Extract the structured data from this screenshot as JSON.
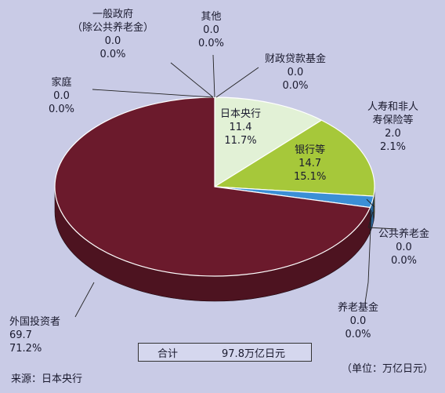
{
  "chart_data": {
    "type": "pie",
    "slices": [
      {
        "name": "日本央行",
        "value": "11.4",
        "pct": "11.7%",
        "v": 11.4,
        "color": "#e2f1d6"
      },
      {
        "name": "银行等",
        "value": "14.7",
        "pct": "15.1%",
        "v": 14.7,
        "color": "#a6c83a"
      },
      {
        "name": "人寿和非人寿保险等",
        "value": "2.0",
        "pct": "2.1%",
        "v": 2.0,
        "color": "#3b8fd6"
      },
      {
        "name": "公共养老金",
        "value": "0.0",
        "pct": "0.0%",
        "v": 0.0,
        "color": "#3b8fd6"
      },
      {
        "name": "养老基金",
        "value": "0.0",
        "pct": "0.0%",
        "v": 0.0,
        "color": "#3b8fd6"
      },
      {
        "name": "外国投资者",
        "value": "69.7",
        "pct": "71.2%",
        "v": 69.7,
        "color": "#6b1a2c"
      },
      {
        "name": "家庭",
        "value": "0.0",
        "pct": "0.0%",
        "v": 0.0,
        "color": "#6b1a2c"
      },
      {
        "name": "一般政府（除公共养老金）",
        "value": "0.0",
        "pct": "0.0%",
        "v": 0.0,
        "color": "#6b1a2c"
      },
      {
        "name": "其他",
        "value": "0.0",
        "pct": "0.0%",
        "v": 0.0,
        "color": "#6b1a2c"
      },
      {
        "name": "财政贷款基金",
        "value": "0.0",
        "pct": "0.0%",
        "v": 0.0,
        "color": "#6b1a2c"
      }
    ],
    "labels": {
      "boj": {
        "name": "日本央行",
        "value": "11.4",
        "pct": "11.7%"
      },
      "banks": {
        "name": "银行等",
        "value": "14.7",
        "pct": "15.1%"
      },
      "insurance": {
        "name1": "人寿和非人",
        "name2": "寿保险等",
        "value": "2.0",
        "pct": "2.1%"
      },
      "public_pension": {
        "name": "公共养老金",
        "value": "0.0",
        "pct": "0.0%"
      },
      "pension_fund": {
        "name": "养老基金",
        "value": "0.0",
        "pct": "0.0%"
      },
      "foreign": {
        "name": "外国投资者",
        "value": "69.7",
        "pct": "71.2%"
      },
      "household": {
        "name": "家庭",
        "value": "0.0",
        "pct": "0.0%"
      },
      "general_gov": {
        "name1": "一般政府",
        "name2": "（除公共养老金）",
        "value": "0.0",
        "pct": "0.0%"
      },
      "other": {
        "name": "其他",
        "value": "0.0",
        "pct": "0.0%"
      },
      "fiscal_loan": {
        "name": "财政贷款基金",
        "value": "0.0",
        "pct": "0.0%"
      }
    },
    "total_label": "合计",
    "total_value": "97.8万亿日元",
    "source": "来源：日本央行",
    "unit": "（单位：万亿日元）"
  }
}
